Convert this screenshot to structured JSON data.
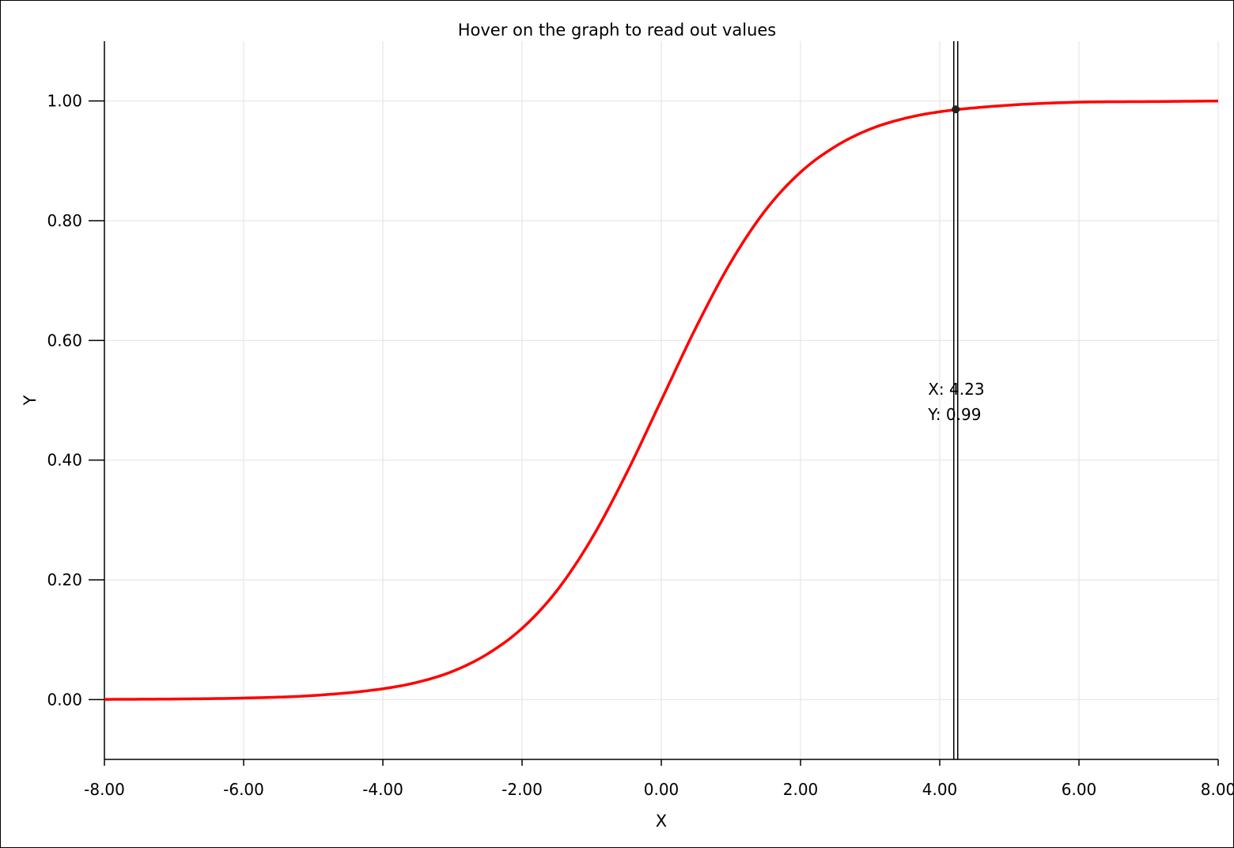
{
  "chart_data": {
    "type": "line",
    "title": "Hover on the graph to read out values",
    "xlabel": "X",
    "ylabel": "Y",
    "xlim": [
      -8,
      8
    ],
    "ylim": [
      -0.1,
      1.1
    ],
    "grid": true,
    "x_ticks": [
      "-8.00",
      "-6.00",
      "-4.00",
      "-2.00",
      "0.00",
      "2.00",
      "4.00",
      "6.00",
      "8.00"
    ],
    "y_ticks": [
      "0.00",
      "0.20",
      "0.40",
      "0.60",
      "0.80",
      "1.00"
    ],
    "series": [
      {
        "color": "#ff0000",
        "x": [
          -8,
          -7,
          -6,
          -5,
          -4,
          -3.5,
          -3,
          -2.5,
          -2,
          -1.5,
          -1,
          -0.5,
          0,
          0.5,
          1,
          1.5,
          2,
          2.5,
          3,
          3.5,
          4,
          5,
          6,
          7,
          8
        ],
        "y": [
          0.0003,
          0.0009,
          0.0025,
          0.0067,
          0.018,
          0.029,
          0.047,
          0.076,
          0.119,
          0.182,
          0.269,
          0.378,
          0.5,
          0.622,
          0.731,
          0.818,
          0.881,
          0.924,
          0.953,
          0.971,
          0.982,
          0.993,
          0.998,
          0.999,
          1.0
        ]
      }
    ],
    "cursor": {
      "x": 4.23,
      "y": 0.986,
      "x_label": "X: 4.23",
      "y_label": "Y: 0.99"
    }
  }
}
